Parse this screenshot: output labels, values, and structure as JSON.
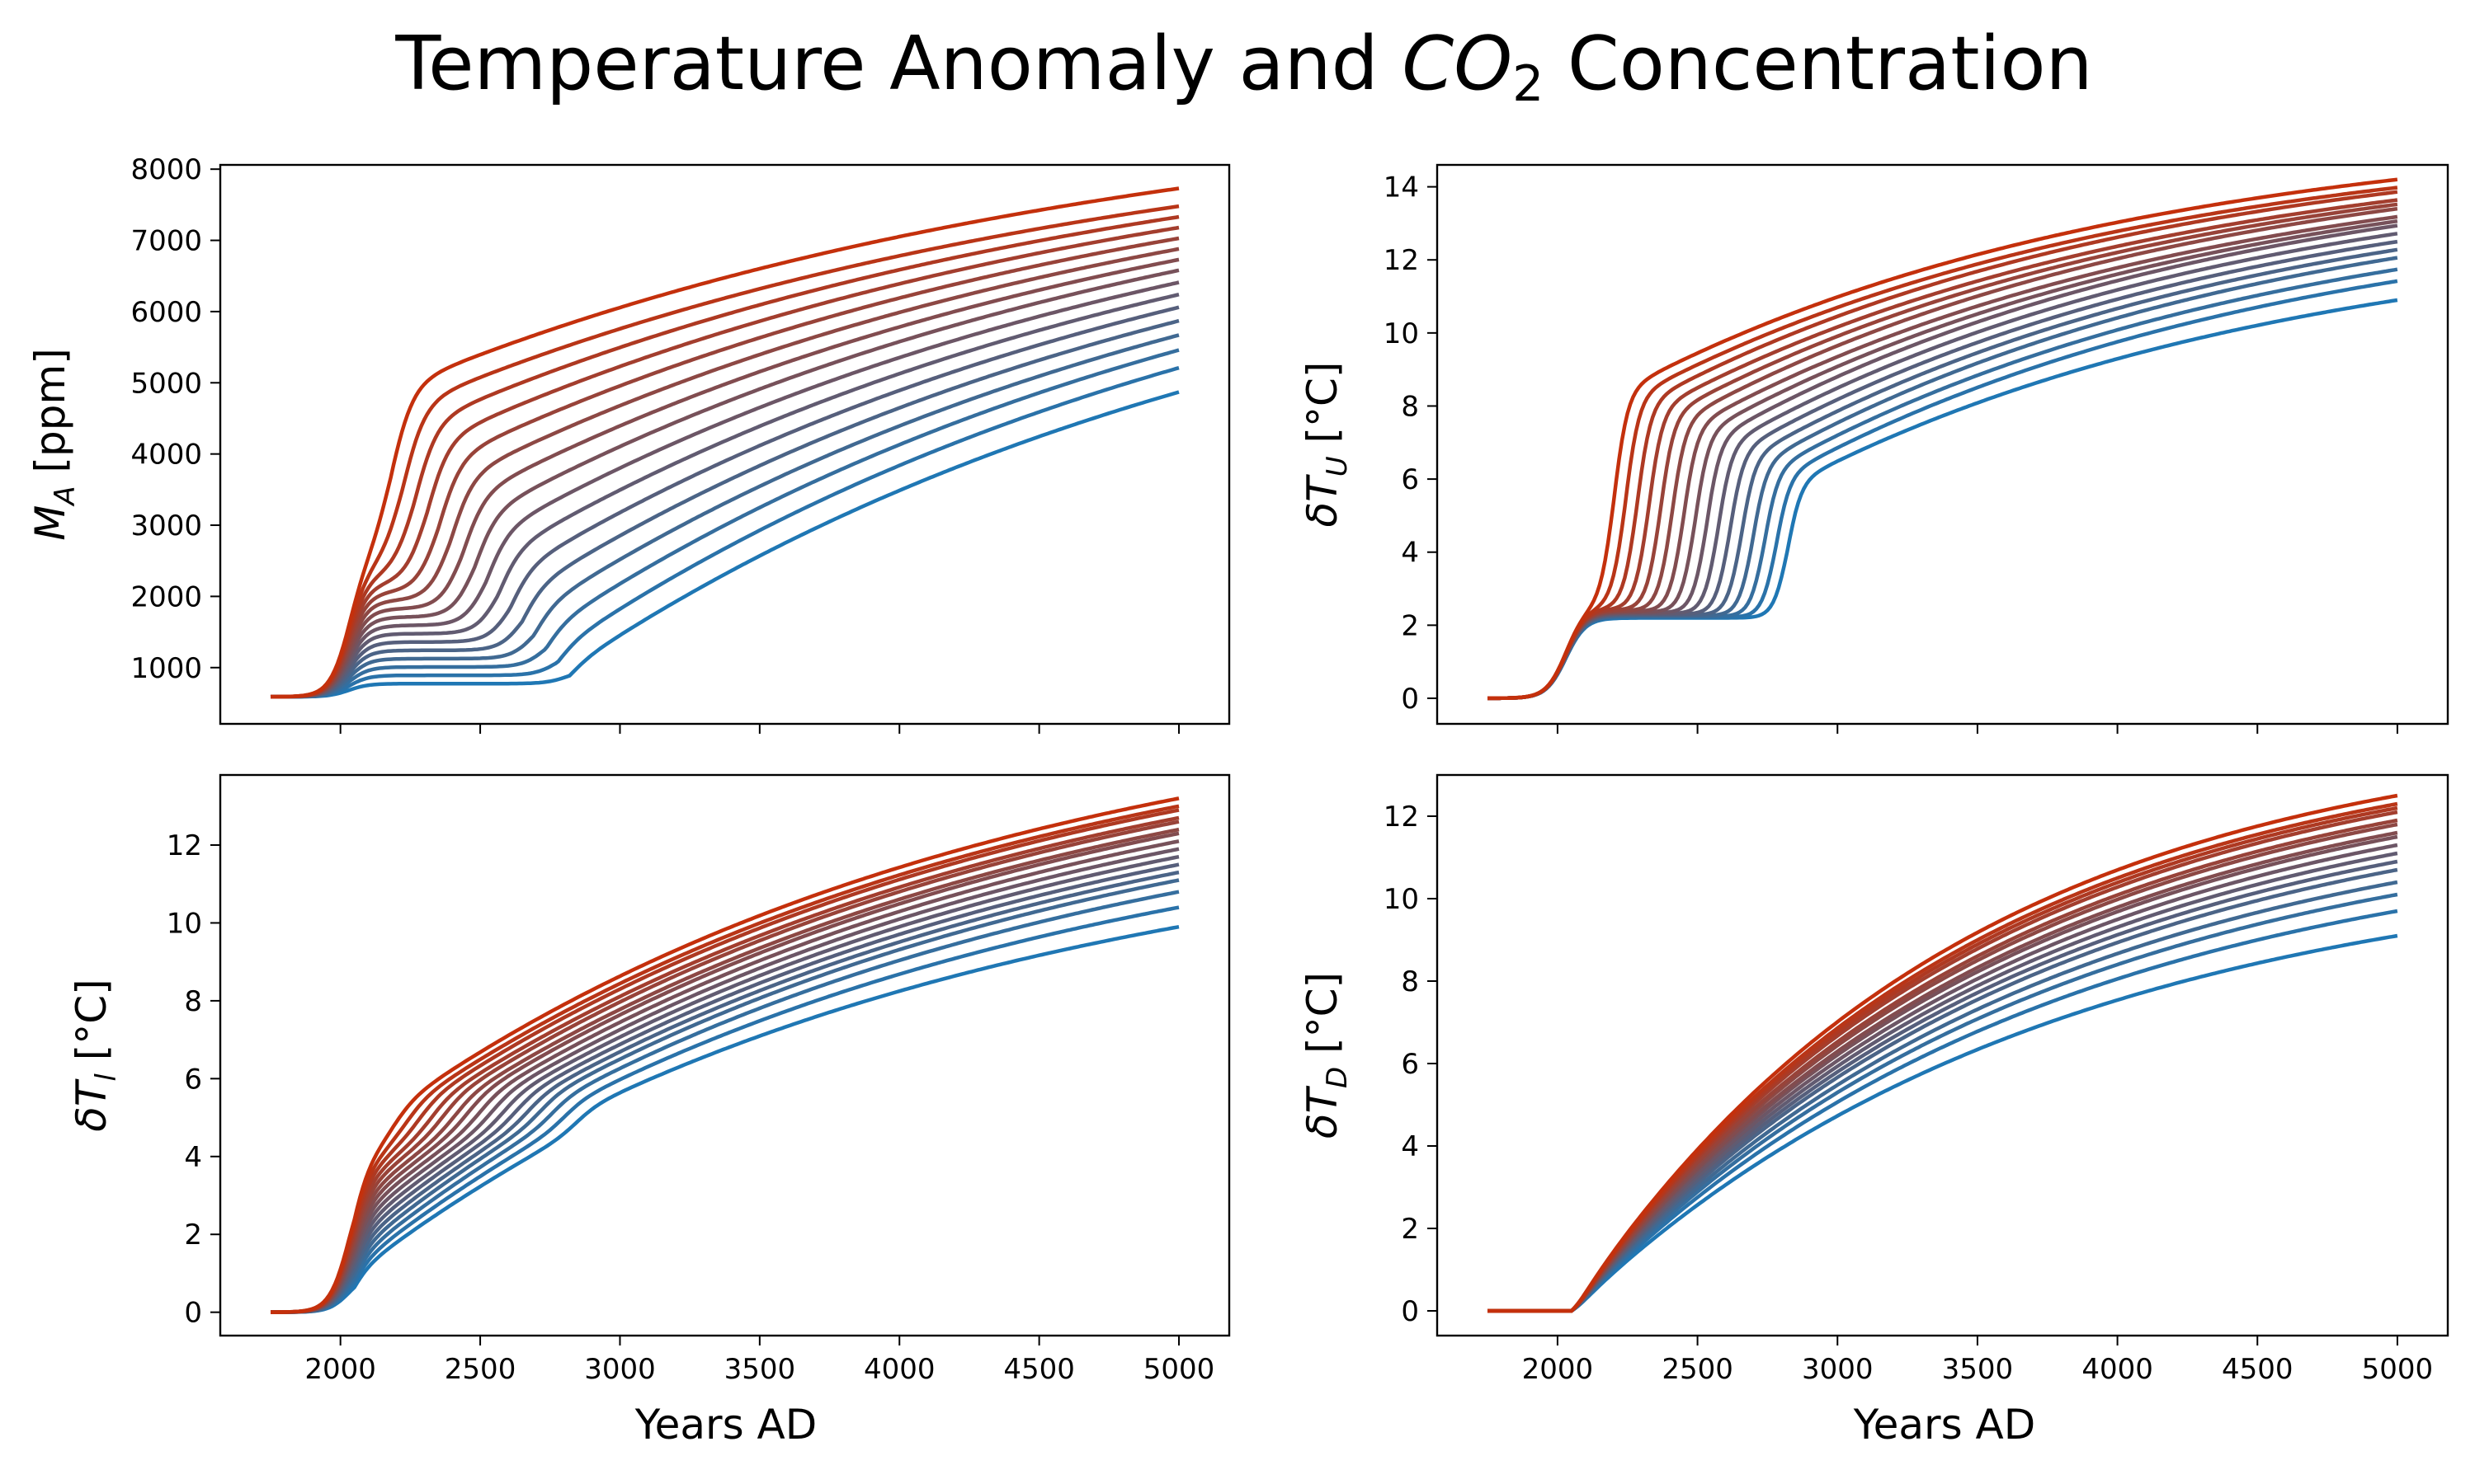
{
  "figure": {
    "title_main": "Temperature Anomaly and ",
    "title_symbol": "CO",
    "title_sub": "2",
    "title_tail": " Concentration",
    "xlabel": "Years AD"
  },
  "colors": {
    "low": "#1f77b4",
    "high": "#c4300c",
    "n_series": 16
  },
  "chart_data": [
    {
      "id": "MA",
      "type": "line",
      "ylabel_sym": "M",
      "ylabel_sub": "A",
      "ylabel_unit": " [ppm]",
      "x_range": [
        1750,
        5000
      ],
      "xlim": [
        1570,
        5180
      ],
      "ylim": [
        210,
        8060
      ],
      "x_ticks": [
        2000,
        2500,
        3000,
        3500,
        4000,
        4500,
        5000
      ],
      "y_ticks": [
        1000,
        2000,
        3000,
        4000,
        5000,
        6000,
        7000,
        8000
      ],
      "show_x_ticklabels": false,
      "final_values": [
        4870,
        5210,
        5460,
        5670,
        5870,
        6060,
        6240,
        6410,
        6580,
        6730,
        6880,
        7030,
        7180,
        7330,
        7480,
        7730
      ],
      "start_value": 590
    },
    {
      "id": "TU",
      "type": "line",
      "ylabel_sym": "δT",
      "ylabel_sub": "U",
      "ylabel_unit": " [°C]",
      "x_range": [
        1750,
        5000
      ],
      "xlim": [
        1570,
        5180
      ],
      "ylim": [
        -0.7,
        14.6
      ],
      "x_ticks": [
        2000,
        2500,
        3000,
        3500,
        4000,
        4500,
        5000
      ],
      "y_ticks": [
        0,
        2,
        4,
        6,
        8,
        10,
        12,
        14
      ],
      "show_x_ticklabels": false,
      "final_values": [
        10.9,
        11.4,
        11.7,
        12.0,
        12.2,
        12.4,
        12.6,
        12.8,
        12.9,
        13.0,
        13.2,
        13.3,
        13.4,
        13.6,
        13.7,
        13.9
      ],
      "start_value": 0
    },
    {
      "id": "TL",
      "type": "line",
      "ylabel_sym": "δT",
      "ylabel_sub": "l",
      "ylabel_unit": " [°C]",
      "x_range": [
        1750,
        5000
      ],
      "xlim": [
        1570,
        5180
      ],
      "ylim": [
        -0.6,
        13.8
      ],
      "x_ticks": [
        2000,
        2500,
        3000,
        3500,
        4000,
        4500,
        5000
      ],
      "y_ticks": [
        0,
        2,
        4,
        6,
        8,
        10,
        12
      ],
      "show_x_ticklabels": true,
      "final_values": [
        9.9,
        10.4,
        10.8,
        11.1,
        11.3,
        11.5,
        11.7,
        11.9,
        12.1,
        12.3,
        12.4,
        12.6,
        12.7,
        12.9,
        13.0,
        13.2
      ],
      "start_value": 0
    },
    {
      "id": "TD",
      "type": "line",
      "ylabel_sym": "δT",
      "ylabel_sub": "D",
      "ylabel_unit": " [°C]",
      "x_range": [
        1750,
        5000
      ],
      "xlim": [
        1570,
        5180
      ],
      "ylim": [
        -0.6,
        13.0
      ],
      "x_ticks": [
        2000,
        2500,
        3000,
        3500,
        4000,
        4500,
        5000
      ],
      "y_ticks": [
        0,
        2,
        4,
        6,
        8,
        10,
        12
      ],
      "show_x_ticklabels": true,
      "final_values": [
        9.1,
        9.7,
        10.1,
        10.4,
        10.7,
        10.9,
        11.1,
        11.3,
        11.5,
        11.6,
        11.8,
        11.9,
        12.1,
        12.2,
        12.3,
        12.5
      ],
      "start_value": 0
    }
  ]
}
